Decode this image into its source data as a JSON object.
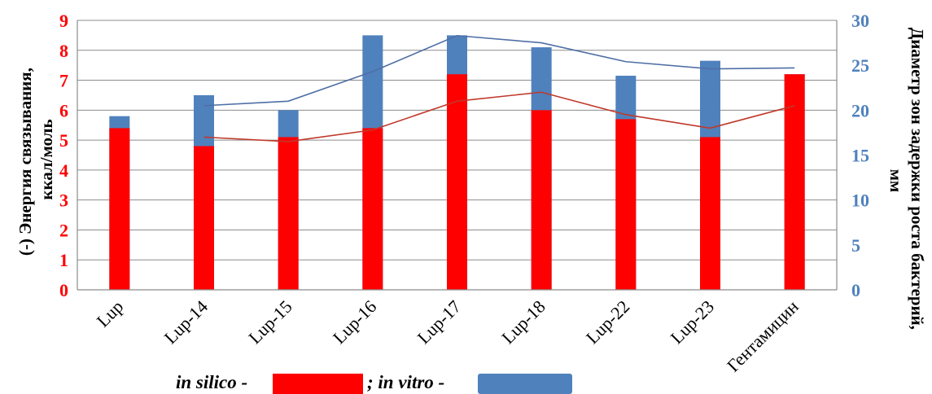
{
  "chart_data": {
    "type": "bar",
    "categories": [
      "Lup",
      "Lup-14",
      "Lup-15",
      "Lup-16",
      "Lup-17",
      "Lup-18",
      "Lup-22",
      "Lup-23",
      "Гентамицин"
    ],
    "series": [
      {
        "name": "in silico",
        "kind": "bar",
        "axis": "left",
        "color": "#ff0000",
        "values": [
          5.4,
          4.8,
          5.1,
          5.4,
          7.2,
          6.0,
          5.7,
          5.1,
          7.2
        ]
      },
      {
        "name": "in vitro",
        "kind": "bar",
        "axis": "left",
        "color": "#4f81bd",
        "values": [
          5.8,
          6.5,
          6.0,
          8.5,
          8.5,
          8.1,
          7.15,
          7.65,
          7.2
        ]
      },
      {
        "kind": "line",
        "axis": "right",
        "color": "#4f6fa5",
        "values": [
          null,
          20.5,
          21.0,
          24.3,
          28.3,
          27.5,
          25.4,
          24.6,
          24.7
        ]
      },
      {
        "kind": "line",
        "axis": "right",
        "color": "#c0392b",
        "values": [
          null,
          17.0,
          16.5,
          17.8,
          21.0,
          22.0,
          19.5,
          18.0,
          20.5
        ]
      }
    ],
    "ylabel": "(-) Энергия связывания, ккал/моль",
    "y2label": "Диаметр зон задержки роста бактерий,мм",
    "ylim": [
      0,
      9
    ],
    "y2lim": [
      0,
      30
    ],
    "yticks": [
      "0",
      "1",
      "2",
      "3",
      "4",
      "5",
      "6",
      "7",
      "8",
      "9"
    ],
    "y2ticks": [
      "0",
      "5",
      "10",
      "15",
      "20",
      "25",
      "30"
    ],
    "grid": true,
    "legend": {
      "prefix_silico": "in silico -",
      "sep": "; ",
      "prefix_vitro": "in vitro -"
    }
  }
}
